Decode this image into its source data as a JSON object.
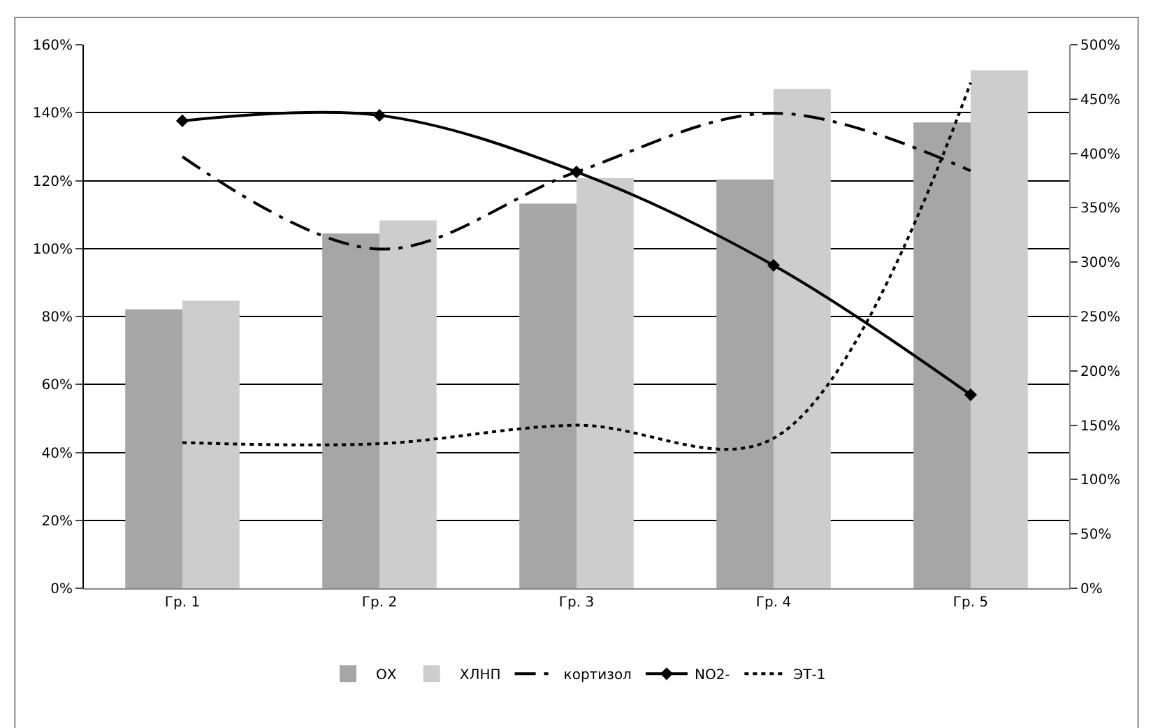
{
  "chart_data": {
    "type": "bar",
    "categories": [
      "Гр. 1",
      "Гр. 2",
      "Гр. 3",
      "Гр. 4",
      "Гр. 5"
    ],
    "series": [
      {
        "name": "ОХ",
        "color": "#a6a6a6",
        "values": [
          82.1,
          104.4,
          113.2,
          120.3,
          137.1
        ]
      },
      {
        "name": "ХЛНП",
        "color": "#cdcdcd",
        "values": [
          84.7,
          108.3,
          120.7,
          147.0,
          152.5
        ]
      },
      {
        "name": "кортизол",
        "type": "line",
        "axis": "y2",
        "color": "#000000",
        "line_style": "dashed",
        "marker": "none",
        "values": [
          397,
          312,
          383,
          437,
          384
        ]
      },
      {
        "name": "NO2-",
        "type": "line",
        "axis": "y2",
        "color": "#000000",
        "line_style": "solid",
        "marker": "diamond",
        "values": [
          430,
          435,
          383,
          297,
          178
        ]
      },
      {
        "name": "ЭТ-1",
        "type": "line",
        "axis": "y2",
        "color": "#000000",
        "line_style": "dotted",
        "marker": "none",
        "values": [
          134,
          133,
          150,
          138,
          465
        ]
      }
    ],
    "ylim": [
      0,
      160
    ],
    "yticks": [
      {
        "value": 0,
        "label": "0%"
      },
      {
        "value": 20,
        "label": "20%"
      },
      {
        "value": 40,
        "label": "40%"
      },
      {
        "value": 60,
        "label": "60%"
      },
      {
        "value": 80,
        "label": "80%"
      },
      {
        "value": 100,
        "label": "100%"
      },
      {
        "value": 120,
        "label": "120%"
      },
      {
        "value": 140,
        "label": "140%"
      },
      {
        "value": 160,
        "label": "160%"
      }
    ],
    "y2lim": [
      0,
      500
    ],
    "y2ticks": [
      {
        "value": 0,
        "label": "0%"
      },
      {
        "value": 50,
        "label": "50%"
      },
      {
        "value": 100,
        "label": "100%"
      },
      {
        "value": 150,
        "label": "150%"
      },
      {
        "value": 200,
        "label": "200%"
      },
      {
        "value": 250,
        "label": "250%"
      },
      {
        "value": 300,
        "label": "300%"
      },
      {
        "value": 350,
        "label": "350%"
      },
      {
        "value": 400,
        "label": "400%"
      },
      {
        "value": 450,
        "label": "450%"
      },
      {
        "value": 500,
        "label": "500%"
      }
    ],
    "grid": "y",
    "legend": "bottom"
  }
}
